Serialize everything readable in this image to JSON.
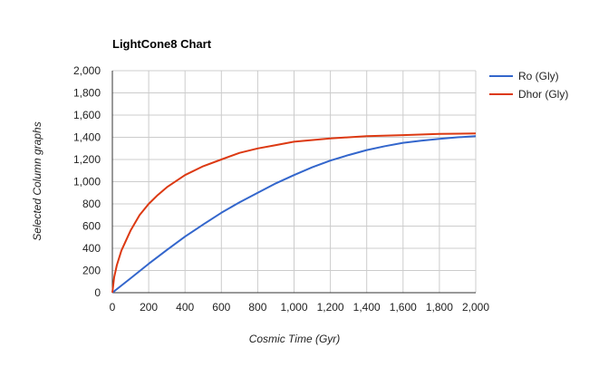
{
  "chart_data": {
    "type": "line",
    "title": "LightCone8 Chart",
    "xlabel": "Cosmic Time (Gyr)",
    "ylabel": "Selected Column graphs",
    "xlim": [
      0,
      2000
    ],
    "ylim": [
      0,
      2000
    ],
    "x_ticks": [
      "0",
      "200",
      "400",
      "600",
      "800",
      "1,000",
      "1,200",
      "1,400",
      "1,600",
      "1,800",
      "2,000"
    ],
    "y_ticks": [
      "0",
      "200",
      "400",
      "600",
      "800",
      "1,000",
      "1,200",
      "1,400",
      "1,600",
      "1,800",
      "2,000"
    ],
    "grid": true,
    "legend_position": "right",
    "series": [
      {
        "name": "Ro (Gly)",
        "color": "#3366cc",
        "points": [
          [
            0,
            0
          ],
          [
            100,
            130
          ],
          [
            200,
            260
          ],
          [
            300,
            385
          ],
          [
            400,
            505
          ],
          [
            500,
            615
          ],
          [
            600,
            720
          ],
          [
            700,
            815
          ],
          [
            800,
            900
          ],
          [
            900,
            985
          ],
          [
            1000,
            1060
          ],
          [
            1100,
            1130
          ],
          [
            1200,
            1190
          ],
          [
            1300,
            1240
          ],
          [
            1400,
            1285
          ],
          [
            1500,
            1320
          ],
          [
            1600,
            1350
          ],
          [
            1700,
            1370
          ],
          [
            1800,
            1385
          ],
          [
            1900,
            1400
          ],
          [
            2000,
            1410
          ]
        ]
      },
      {
        "name": "Dhor (Gly)",
        "color": "#dc3912",
        "points": [
          [
            0,
            0
          ],
          [
            10,
            140
          ],
          [
            25,
            250
          ],
          [
            50,
            380
          ],
          [
            100,
            560
          ],
          [
            150,
            700
          ],
          [
            200,
            800
          ],
          [
            250,
            880
          ],
          [
            300,
            950
          ],
          [
            400,
            1060
          ],
          [
            500,
            1140
          ],
          [
            600,
            1200
          ],
          [
            700,
            1260
          ],
          [
            800,
            1300
          ],
          [
            900,
            1330
          ],
          [
            1000,
            1360
          ],
          [
            1200,
            1390
          ],
          [
            1400,
            1410
          ],
          [
            1600,
            1420
          ],
          [
            1800,
            1430
          ],
          [
            2000,
            1435
          ]
        ]
      }
    ]
  }
}
